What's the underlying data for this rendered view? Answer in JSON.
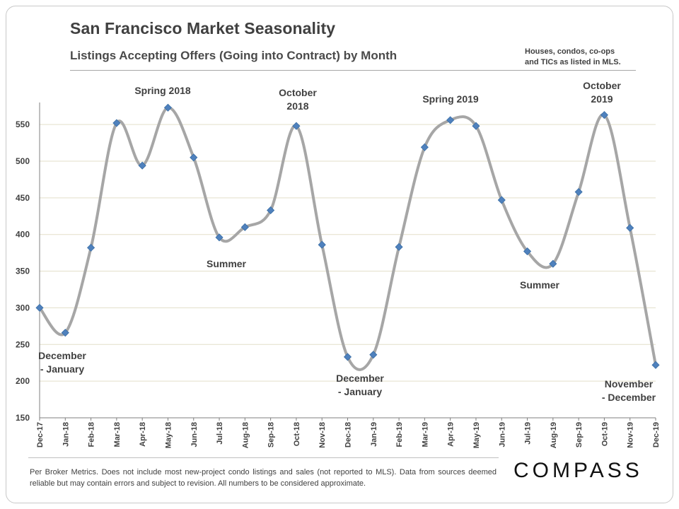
{
  "header": {
    "title": "San Francisco Market Seasonality",
    "subtitle": "Listings Accepting Offers (Going into Contract) by Month",
    "note_line1": "Houses, condos, co-ops",
    "note_line2": "and TICs as listed in MLS."
  },
  "footer": {
    "footnote": "Per Broker Metrics. Does not include most new-project condo listings and sales (not reported to MLS). Data from sources deemed reliable but may contain errors and subject to revision.  All numbers to be considered approximate.",
    "logo_text": "COMPASS"
  },
  "annotations": {
    "spring_2018": "Spring 2018",
    "october_2018_line1": "October",
    "october_2018_line2": "2018",
    "summer_2018": "Summer",
    "dec_jan_1_line1": "December",
    "dec_jan_1_line2": "- January",
    "dec_jan_2_line1": "December",
    "dec_jan_2_line2": "- January",
    "spring_2019": "Spring 2019",
    "summer_2019": "Summer",
    "october_2019_line1": "October",
    "october_2019_line2": "2019",
    "nov_dec_line1": "November",
    "nov_dec_line2": "- December"
  },
  "chart_data": {
    "type": "line",
    "title": "San Francisco Market Seasonality",
    "subtitle": "Listings Accepting Offers (Going into Contract) by Month",
    "xlabel": "",
    "ylabel": "",
    "ylim": [
      150,
      580
    ],
    "yticks": [
      150,
      200,
      250,
      300,
      350,
      400,
      450,
      500,
      550
    ],
    "grid": true,
    "smoothed": true,
    "categories": [
      "Dec-17",
      "Jan-18",
      "Feb-18",
      "Mar-18",
      "Apr-18",
      "May-18",
      "Jun-18",
      "Jul-18",
      "Aug-18",
      "Sep-18",
      "Oct-18",
      "Nov-18",
      "Dec-18",
      "Jan-19",
      "Feb-19",
      "Mar-19",
      "Apr-19",
      "May-19",
      "Jun-19",
      "Jul-19",
      "Aug-19",
      "Sep-19",
      "Oct-19",
      "Nov-19",
      "Dec-19"
    ],
    "series": [
      {
        "name": "Listings Accepting Offers",
        "color": "#a6a6a6",
        "marker_color": "#4f81bd",
        "values": [
          300,
          266,
          382,
          552,
          494,
          573,
          505,
          396,
          410,
          433,
          548,
          386,
          233,
          236,
          383,
          519,
          556,
          548,
          447,
          377,
          360,
          458,
          563,
          409,
          222
        ]
      }
    ]
  }
}
